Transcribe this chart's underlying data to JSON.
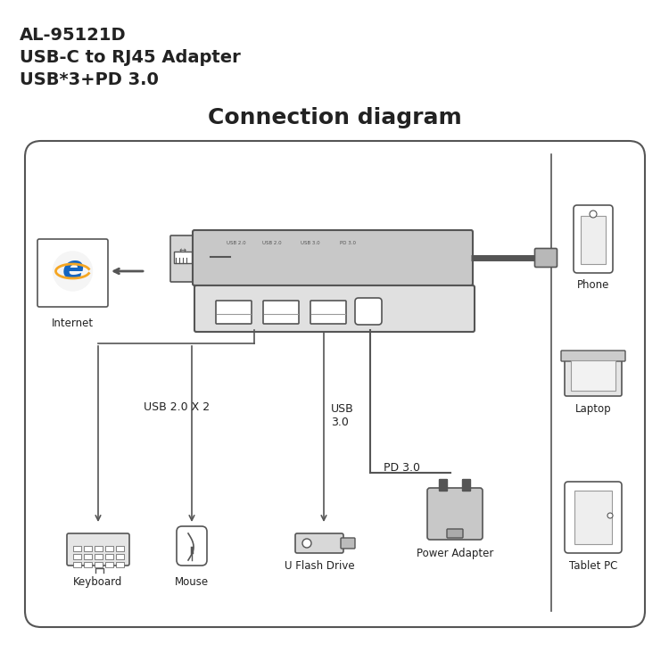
{
  "title_line1": "AL-95121D",
  "title_line2": "USB-C to RJ45 Adapter",
  "title_line3": "USB*3+PD 3.0",
  "diagram_title": "Connection diagram",
  "bg_color": "#ffffff",
  "box_color": "#333333",
  "text_color": "#222222",
  "gray_color": "#999999",
  "dark_gray": "#555555",
  "mid_gray": "#aaaaaa",
  "light_gray": "#dddddd"
}
